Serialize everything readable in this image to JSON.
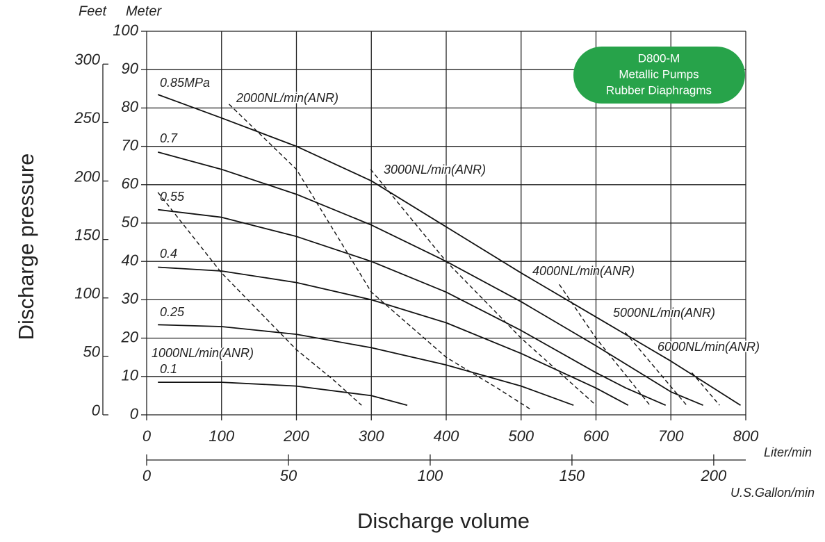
{
  "chart_data": {
    "type": "line",
    "badge": [
      "D800-M",
      "Metallic Pumps",
      "Rubber Diaphragms"
    ],
    "y_label": "Discharge pressure",
    "x_label": "Discharge volume",
    "y_unit": "Meter",
    "y2_unit": "Feet",
    "x_unit": "Liter/min",
    "x2_unit": "U.S.Gallon/min",
    "xlim": [
      0,
      800
    ],
    "xticks": [
      0,
      100,
      200,
      300,
      400,
      500,
      600,
      700,
      800
    ],
    "ylim": [
      0,
      100
    ],
    "yticks": [
      0,
      10,
      20,
      30,
      40,
      50,
      60,
      70,
      80,
      90,
      100
    ],
    "y2lim": [
      0,
      328.1
    ],
    "y2ticks": [
      0,
      50,
      100,
      150,
      200,
      250,
      300
    ],
    "x2lim": [
      0,
      211.3
    ],
    "x2ticks": [
      0,
      50,
      100,
      150,
      200
    ],
    "grid": true,
    "series": [
      {
        "name": "0.85MPa",
        "style": "solid",
        "color": "#111111",
        "x": [
          15,
          100,
          200,
          300,
          400,
          500,
          600,
          700,
          793
        ],
        "values": [
          83.5,
          77.4,
          70,
          61,
          49,
          37,
          25.5,
          14,
          2.5
        ]
      },
      {
        "name": "0.7",
        "style": "solid",
        "color": "#111111",
        "x": [
          15,
          100,
          200,
          300,
          400,
          500,
          600,
          700,
          743
        ],
        "values": [
          68.5,
          64,
          57.5,
          49.5,
          40,
          29.5,
          18,
          6,
          2.5
        ]
      },
      {
        "name": "0.55",
        "style": "solid",
        "color": "#111111",
        "x": [
          15,
          100,
          200,
          300,
          400,
          500,
          600,
          640,
          693
        ],
        "values": [
          53.5,
          51.5,
          46.5,
          40,
          32,
          22,
          11,
          7,
          2.5
        ]
      },
      {
        "name": "0.4",
        "style": "solid",
        "color": "#111111",
        "x": [
          15,
          100,
          200,
          300,
          400,
          500,
          600,
          643
        ],
        "values": [
          38.5,
          37.5,
          34.5,
          30,
          24,
          16,
          7,
          2.5
        ]
      },
      {
        "name": "0.25",
        "style": "solid",
        "color": "#111111",
        "x": [
          15,
          100,
          200,
          300,
          400,
          500,
          570
        ],
        "values": [
          23.5,
          23,
          21,
          17.5,
          13,
          7.5,
          2.5
        ]
      },
      {
        "name": "0.1",
        "style": "solid",
        "color": "#111111",
        "x": [
          15,
          100,
          200,
          300,
          348
        ],
        "values": [
          8.5,
          8.5,
          7.5,
          5,
          2.5
        ]
      },
      {
        "name": "1000NL/min(ANR)",
        "style": "dashed",
        "color": "#111111",
        "x": [
          15,
          100,
          200,
          250,
          287
        ],
        "values": [
          58,
          37,
          17,
          9,
          2.5
        ]
      },
      {
        "name": "2000NL/min(ANR)",
        "style": "dashed",
        "color": "#111111",
        "x": [
          110,
          200,
          300,
          400,
          468,
          512
        ],
        "values": [
          81,
          64,
          32,
          15,
          7,
          1.5
        ]
      },
      {
        "name": "3000NL/min(ANR)",
        "style": "dashed",
        "color": "#111111",
        "x": [
          299,
          400,
          500,
          600
        ],
        "values": [
          64,
          40,
          20,
          2.5
        ]
      },
      {
        "name": "4000NL/min(ANR)",
        "style": "dashed",
        "color": "#111111",
        "x": [
          551,
          600,
          672
        ],
        "values": [
          34,
          20,
          2.5
        ]
      },
      {
        "name": "5000NL/min(ANR)",
        "style": "dashed",
        "color": "#111111",
        "x": [
          639,
          680,
          721
        ],
        "values": [
          21.5,
          12,
          2.5
        ]
      },
      {
        "name": "6000NL/min(ANR)",
        "style": "dashed",
        "color": "#111111",
        "x": [
          728,
          765
        ],
        "values": [
          11,
          2.5
        ]
      }
    ]
  }
}
